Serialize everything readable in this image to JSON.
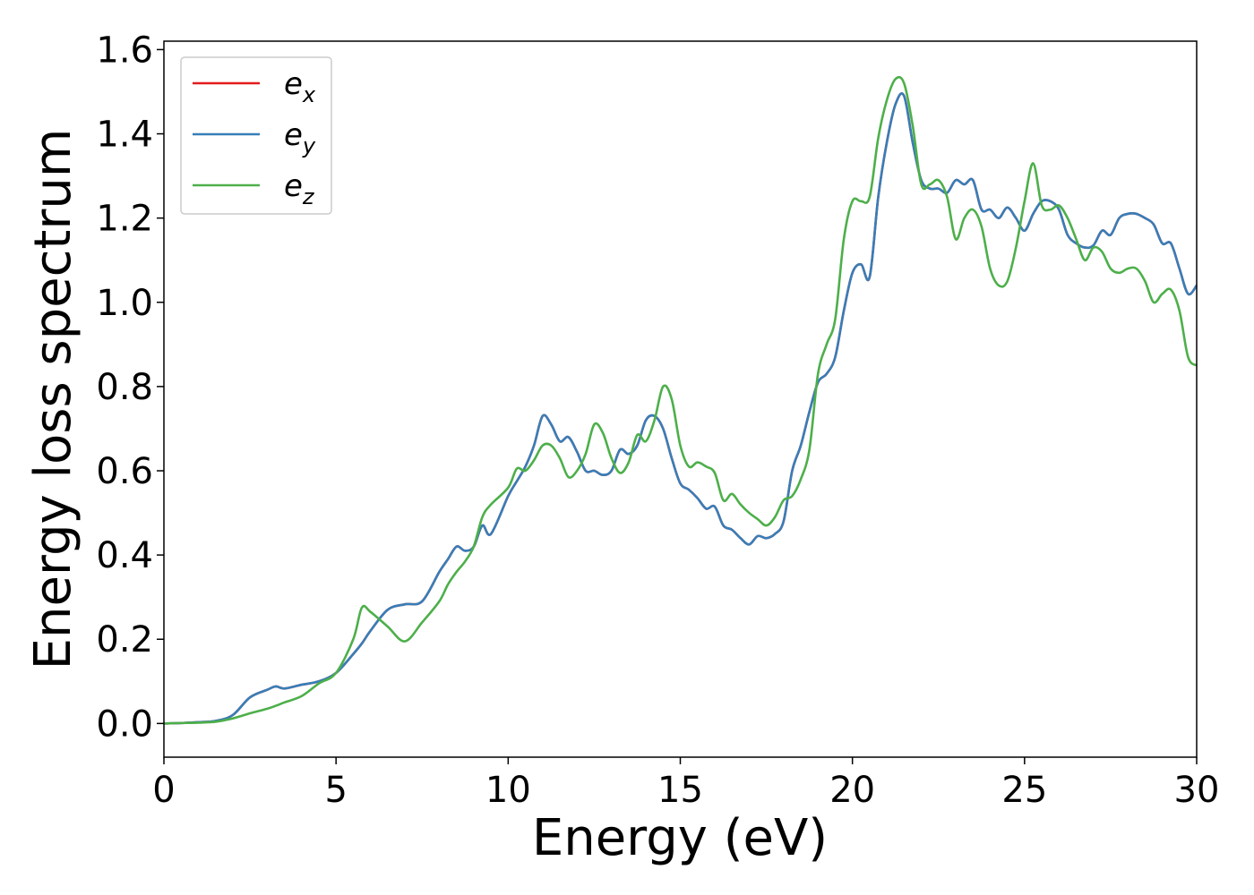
{
  "chart_data": {
    "type": "line",
    "title": "",
    "xlabel": "Energy (eV)",
    "ylabel": "Energy loss spectrum",
    "xlim": [
      0,
      30
    ],
    "ylim": [
      -0.08,
      1.62
    ],
    "xticks": [
      0,
      5,
      10,
      15,
      20,
      25,
      30
    ],
    "xtick_labels": [
      "0",
      "5",
      "10",
      "15",
      "20",
      "25",
      "30"
    ],
    "yticks": [
      0.0,
      0.2,
      0.4,
      0.6,
      0.8,
      1.0,
      1.2,
      1.4,
      1.6
    ],
    "ytick_labels": [
      "0.0",
      "0.2",
      "0.4",
      "0.6",
      "0.8",
      "1.0",
      "1.2",
      "1.4",
      "1.6"
    ],
    "grid": false,
    "legend_position": "top-left",
    "x": [
      0,
      0.5,
      1.0,
      1.5,
      2.0,
      2.5,
      3.0,
      3.25,
      3.5,
      4.0,
      4.5,
      5.0,
      5.5,
      5.75,
      6.0,
      6.5,
      7.0,
      7.5,
      8.0,
      8.25,
      8.5,
      8.75,
      9.0,
      9.25,
      9.5,
      10.0,
      10.25,
      10.5,
      10.75,
      11.0,
      11.25,
      11.5,
      11.75,
      12.0,
      12.25,
      12.5,
      12.75,
      13.0,
      13.25,
      13.5,
      13.75,
      14.0,
      14.25,
      14.5,
      14.75,
      15.0,
      15.25,
      15.5,
      15.75,
      16.0,
      16.25,
      16.5,
      16.75,
      17.0,
      17.25,
      17.5,
      17.75,
      18.0,
      18.25,
      18.5,
      18.75,
      19.0,
      19.25,
      19.5,
      19.75,
      20.0,
      20.25,
      20.5,
      20.75,
      21.0,
      21.25,
      21.5,
      21.75,
      22.0,
      22.25,
      22.5,
      22.75,
      23.0,
      23.25,
      23.5,
      23.75,
      24.0,
      24.25,
      24.5,
      24.75,
      25.0,
      25.25,
      25.5,
      25.75,
      26.0,
      26.25,
      26.5,
      26.75,
      27.0,
      27.25,
      27.5,
      27.75,
      28.0,
      28.25,
      28.5,
      28.75,
      29.0,
      29.25,
      29.5,
      29.75,
      30.0
    ],
    "series": [
      {
        "name": "e_x",
        "legend_symbol": "e",
        "legend_subscript": "x",
        "color": "#e41a1c",
        "values": [
          0.0,
          0.001,
          0.003,
          0.006,
          0.02,
          0.062,
          0.08,
          0.088,
          0.083,
          0.092,
          0.1,
          0.12,
          0.165,
          0.19,
          0.22,
          0.27,
          0.283,
          0.29,
          0.36,
          0.39,
          0.42,
          0.41,
          0.42,
          0.47,
          0.45,
          0.54,
          0.575,
          0.61,
          0.66,
          0.73,
          0.71,
          0.67,
          0.68,
          0.645,
          0.6,
          0.6,
          0.59,
          0.6,
          0.65,
          0.64,
          0.66,
          0.72,
          0.73,
          0.7,
          0.63,
          0.57,
          0.555,
          0.535,
          0.51,
          0.515,
          0.47,
          0.46,
          0.44,
          0.425,
          0.445,
          0.44,
          0.45,
          0.48,
          0.6,
          0.66,
          0.74,
          0.81,
          0.83,
          0.87,
          0.98,
          1.07,
          1.09,
          1.06,
          1.25,
          1.38,
          1.47,
          1.49,
          1.38,
          1.29,
          1.27,
          1.27,
          1.26,
          1.29,
          1.28,
          1.29,
          1.22,
          1.22,
          1.2,
          1.225,
          1.2,
          1.17,
          1.21,
          1.24,
          1.24,
          1.22,
          1.16,
          1.14,
          1.13,
          1.135,
          1.17,
          1.16,
          1.2,
          1.21,
          1.21,
          1.2,
          1.185,
          1.14,
          1.14,
          1.08,
          1.02,
          1.04
        ]
      },
      {
        "name": "e_y",
        "legend_symbol": "e",
        "legend_subscript": "y",
        "color": "#377eb8",
        "values": [
          0.0,
          0.001,
          0.003,
          0.006,
          0.02,
          0.062,
          0.08,
          0.088,
          0.083,
          0.092,
          0.1,
          0.12,
          0.165,
          0.19,
          0.22,
          0.27,
          0.283,
          0.29,
          0.36,
          0.39,
          0.42,
          0.41,
          0.42,
          0.47,
          0.45,
          0.54,
          0.575,
          0.61,
          0.66,
          0.73,
          0.71,
          0.67,
          0.68,
          0.645,
          0.6,
          0.6,
          0.59,
          0.6,
          0.65,
          0.64,
          0.66,
          0.72,
          0.73,
          0.7,
          0.63,
          0.57,
          0.555,
          0.535,
          0.51,
          0.515,
          0.47,
          0.46,
          0.44,
          0.425,
          0.445,
          0.44,
          0.45,
          0.48,
          0.6,
          0.66,
          0.74,
          0.81,
          0.83,
          0.87,
          0.98,
          1.07,
          1.09,
          1.06,
          1.25,
          1.38,
          1.47,
          1.49,
          1.38,
          1.29,
          1.27,
          1.27,
          1.26,
          1.29,
          1.28,
          1.29,
          1.22,
          1.22,
          1.2,
          1.225,
          1.2,
          1.17,
          1.21,
          1.24,
          1.24,
          1.22,
          1.16,
          1.14,
          1.13,
          1.135,
          1.17,
          1.16,
          1.2,
          1.21,
          1.21,
          1.2,
          1.185,
          1.14,
          1.14,
          1.08,
          1.02,
          1.04
        ]
      },
      {
        "name": "e_z",
        "legend_symbol": "e",
        "legend_subscript": "z",
        "color": "#4daf4a",
        "values": [
          0.0,
          0.001,
          0.002,
          0.004,
          0.012,
          0.024,
          0.035,
          0.042,
          0.05,
          0.065,
          0.095,
          0.12,
          0.2,
          0.275,
          0.265,
          0.23,
          0.195,
          0.24,
          0.29,
          0.33,
          0.36,
          0.385,
          0.42,
          0.49,
          0.52,
          0.56,
          0.605,
          0.6,
          0.625,
          0.66,
          0.66,
          0.63,
          0.585,
          0.6,
          0.64,
          0.71,
          0.69,
          0.63,
          0.595,
          0.62,
          0.685,
          0.67,
          0.72,
          0.8,
          0.77,
          0.66,
          0.61,
          0.62,
          0.61,
          0.595,
          0.53,
          0.545,
          0.52,
          0.5,
          0.485,
          0.47,
          0.49,
          0.53,
          0.54,
          0.58,
          0.65,
          0.83,
          0.9,
          0.96,
          1.15,
          1.24,
          1.24,
          1.25,
          1.39,
          1.48,
          1.53,
          1.52,
          1.42,
          1.28,
          1.28,
          1.29,
          1.25,
          1.15,
          1.2,
          1.22,
          1.18,
          1.08,
          1.04,
          1.05,
          1.13,
          1.24,
          1.33,
          1.23,
          1.22,
          1.23,
          1.2,
          1.15,
          1.1,
          1.13,
          1.12,
          1.08,
          1.07,
          1.08,
          1.08,
          1.05,
          1.0,
          1.02,
          1.03,
          0.98,
          0.87,
          0.85
        ]
      }
    ]
  }
}
